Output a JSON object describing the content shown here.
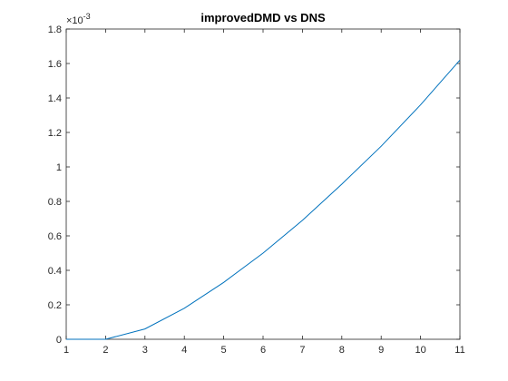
{
  "chart_data": {
    "type": "line",
    "title": "improvedDMD vs DNS",
    "xlabel": "",
    "ylabel": "",
    "y_exponent_label": "×10",
    "y_exponent_power": "-3",
    "x": [
      1,
      2,
      3,
      4,
      5,
      6,
      7,
      8,
      9,
      10,
      11
    ],
    "series": [
      {
        "values": [
          0.0,
          0.0,
          0.06,
          0.18,
          0.33,
          0.5,
          0.69,
          0.9,
          1.12,
          1.36,
          1.62
        ]
      }
    ],
    "xlim": [
      1,
      11
    ],
    "ylim": [
      0,
      1.8
    ],
    "x_ticks": [
      "1",
      "2",
      "3",
      "4",
      "5",
      "6",
      "7",
      "8",
      "9",
      "10",
      "11"
    ],
    "y_ticks": [
      "0",
      "0.2",
      "0.4",
      "0.6",
      "0.8",
      "1",
      "1.2",
      "1.4",
      "1.6",
      "1.8"
    ],
    "grid": false,
    "colors": {
      "line": "#0072bd",
      "axis": "#262626",
      "background": "#ffffff"
    }
  }
}
